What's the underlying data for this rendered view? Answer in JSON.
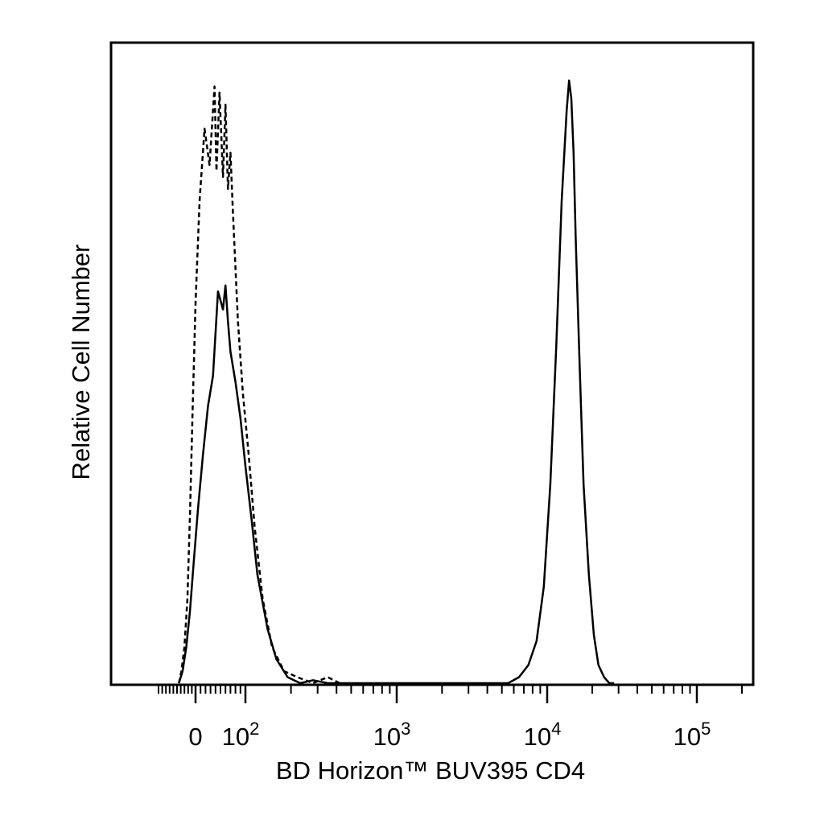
{
  "chart_data": {
    "type": "line",
    "title": "",
    "xlabel": "BD Horizon™ BUV395 CD4",
    "ylabel": "Relative Cell Number",
    "x_scale": "biexponential",
    "xlim": [
      -100,
      250000
    ],
    "ylim": [
      0,
      1
    ],
    "grid": false,
    "legend": "none",
    "x_tick_labels": [
      {
        "value": 0,
        "label": "0",
        "exp": ""
      },
      {
        "value": 100,
        "label": "10",
        "exp": "2"
      },
      {
        "value": 1000,
        "label": "10",
        "exp": "3"
      },
      {
        "value": 10000,
        "label": "10",
        "exp": "4"
      },
      {
        "value": 100000,
        "label": "10",
        "exp": "5"
      }
    ],
    "series": [
      {
        "style": "dashed",
        "color": "#000000",
        "x": [
          -45,
          -38,
          -30,
          -22,
          -15,
          -8,
          0,
          8,
          18,
          28,
          38,
          42,
          48,
          55,
          60,
          65,
          70,
          75,
          85,
          95,
          105,
          115,
          130,
          150,
          180,
          220,
          280,
          350,
          420
        ],
        "y": [
          0.0,
          0.02,
          0.06,
          0.14,
          0.28,
          0.45,
          0.63,
          0.8,
          0.92,
          0.86,
          0.99,
          0.85,
          0.98,
          0.84,
          0.96,
          0.82,
          0.88,
          0.78,
          0.6,
          0.48,
          0.38,
          0.26,
          0.14,
          0.06,
          0.02,
          0.01,
          0.0,
          0.01,
          0.0
        ]
      },
      {
        "style": "solid",
        "color": "#000000",
        "x": [
          -45,
          -35,
          -25,
          -15,
          -5,
          5,
          15,
          25,
          35,
          45,
          55,
          60,
          65,
          70,
          80,
          90,
          100,
          110,
          120,
          140,
          160,
          190,
          230,
          280,
          350,
          500,
          5500,
          6500,
          7500,
          8500,
          9500,
          10500,
          11500,
          12500,
          13500,
          14000,
          14500,
          15000,
          15500,
          16500,
          17500,
          19000,
          20500,
          22000,
          24000,
          26000,
          28000
        ],
        "y": [
          0.0,
          0.02,
          0.06,
          0.12,
          0.2,
          0.29,
          0.38,
          0.46,
          0.51,
          0.65,
          0.62,
          0.66,
          0.6,
          0.55,
          0.5,
          0.44,
          0.36,
          0.27,
          0.18,
          0.09,
          0.04,
          0.01,
          0.0,
          0.005,
          0.0,
          0.0,
          0.0,
          0.01,
          0.03,
          0.07,
          0.16,
          0.33,
          0.56,
          0.8,
          0.95,
          1.0,
          0.97,
          0.88,
          0.74,
          0.52,
          0.33,
          0.18,
          0.08,
          0.03,
          0.01,
          0.0,
          0.0
        ]
      }
    ]
  }
}
